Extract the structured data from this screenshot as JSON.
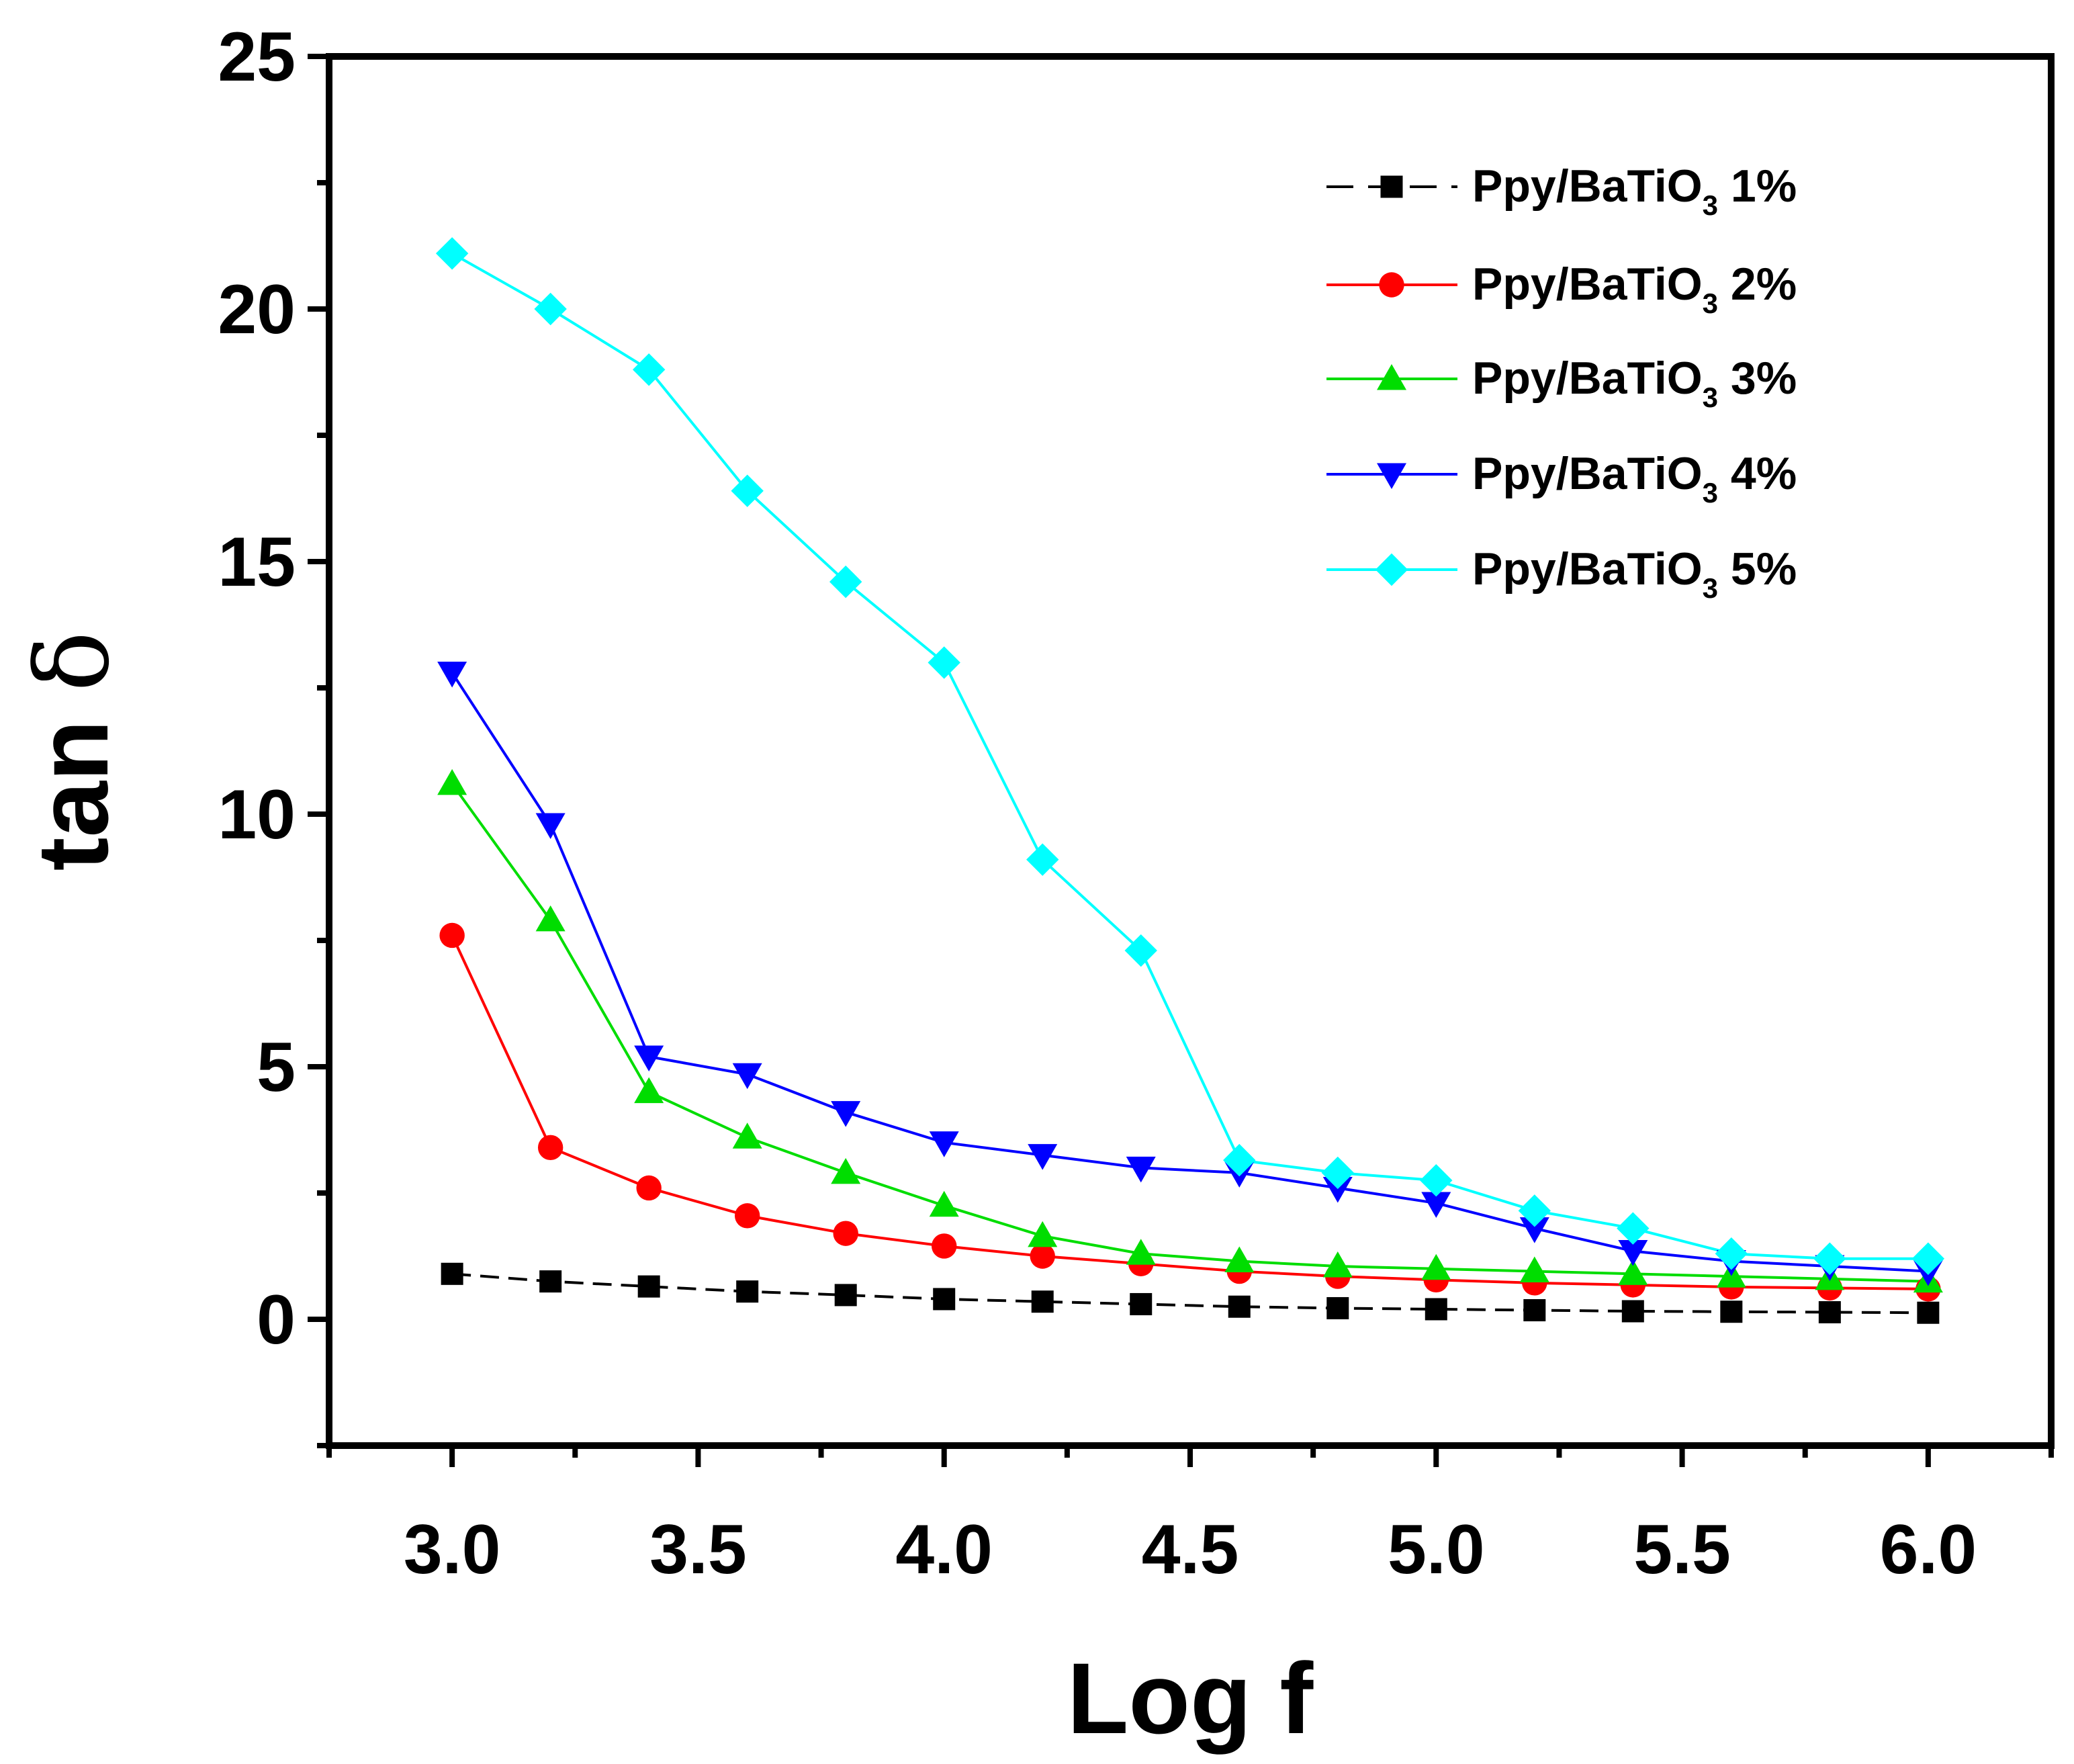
{
  "chart_data": {
    "type": "line",
    "title": "",
    "xlabel": "Log f",
    "ylabel_main": "tan ",
    "ylabel_symbol": "δ",
    "xlim": [
      2.75,
      6.25
    ],
    "ylim": [
      -2.5,
      25
    ],
    "xticks": [
      "3.0",
      "3.5",
      "4.0",
      "4.5",
      "5.0",
      "5.5",
      "6.0"
    ],
    "yticks": [
      "0",
      "5",
      "10",
      "15",
      "20",
      "25"
    ],
    "legend_position": "top-right",
    "x": [
      3.0,
      3.2,
      3.4,
      3.6,
      3.8,
      4.0,
      4.2,
      4.4,
      4.6,
      4.8,
      5.0,
      5.2,
      5.4,
      5.6,
      5.8,
      6.0
    ],
    "series": [
      {
        "name": "Ppy/BaTiO3 1%",
        "legend_main": "Ppy/BaTiO",
        "legend_sub": "3",
        "legend_suffix": " 1%",
        "color": "#000000",
        "marker": "square",
        "dashed": true,
        "values": [
          0.9,
          0.75,
          0.65,
          0.55,
          0.48,
          0.4,
          0.35,
          0.3,
          0.25,
          0.22,
          0.2,
          0.18,
          0.16,
          0.15,
          0.14,
          0.13
        ]
      },
      {
        "name": "Ppy/BaTiO3 2%",
        "legend_main": "Ppy/BaTiO",
        "legend_sub": "3",
        "legend_suffix": " 2%",
        "color": "#ff0000",
        "marker": "circle",
        "dashed": false,
        "values": [
          7.6,
          3.4,
          2.6,
          2.05,
          1.7,
          1.45,
          1.25,
          1.1,
          0.95,
          0.85,
          0.78,
          0.72,
          0.68,
          0.64,
          0.62,
          0.6
        ]
      },
      {
        "name": "Ppy/BaTiO3 3%",
        "legend_main": "Ppy/BaTiO",
        "legend_sub": "3",
        "legend_suffix": " 3%",
        "color": "#00dd00",
        "marker": "triangle-up",
        "dashed": false,
        "values": [
          10.6,
          7.9,
          4.5,
          3.6,
          2.9,
          2.25,
          1.65,
          1.3,
          1.15,
          1.05,
          1.0,
          0.95,
          0.9,
          0.85,
          0.8,
          0.75
        ]
      },
      {
        "name": "Ppy/BaTiO3 4%",
        "legend_main": "Ppy/BaTiO",
        "legend_sub": "3",
        "legend_suffix": " 4%",
        "color": "#0000ff",
        "marker": "triangle-down",
        "dashed": false,
        "values": [
          12.8,
          9.8,
          5.2,
          4.85,
          4.1,
          3.5,
          3.25,
          3.0,
          2.9,
          2.6,
          2.3,
          1.8,
          1.35,
          1.15,
          1.05,
          0.95
        ]
      },
      {
        "name": "Ppy/BaTiO3 5%",
        "legend_main": "Ppy/BaTiO",
        "legend_sub": "3",
        "legend_suffix": " 5%",
        "color": "#00ffff",
        "marker": "diamond",
        "dashed": false,
        "values": [
          21.1,
          20.0,
          18.8,
          16.4,
          14.6,
          13.0,
          9.1,
          7.3,
          3.15,
          2.9,
          2.75,
          2.15,
          1.8,
          1.3,
          1.2,
          1.2
        ]
      }
    ]
  }
}
